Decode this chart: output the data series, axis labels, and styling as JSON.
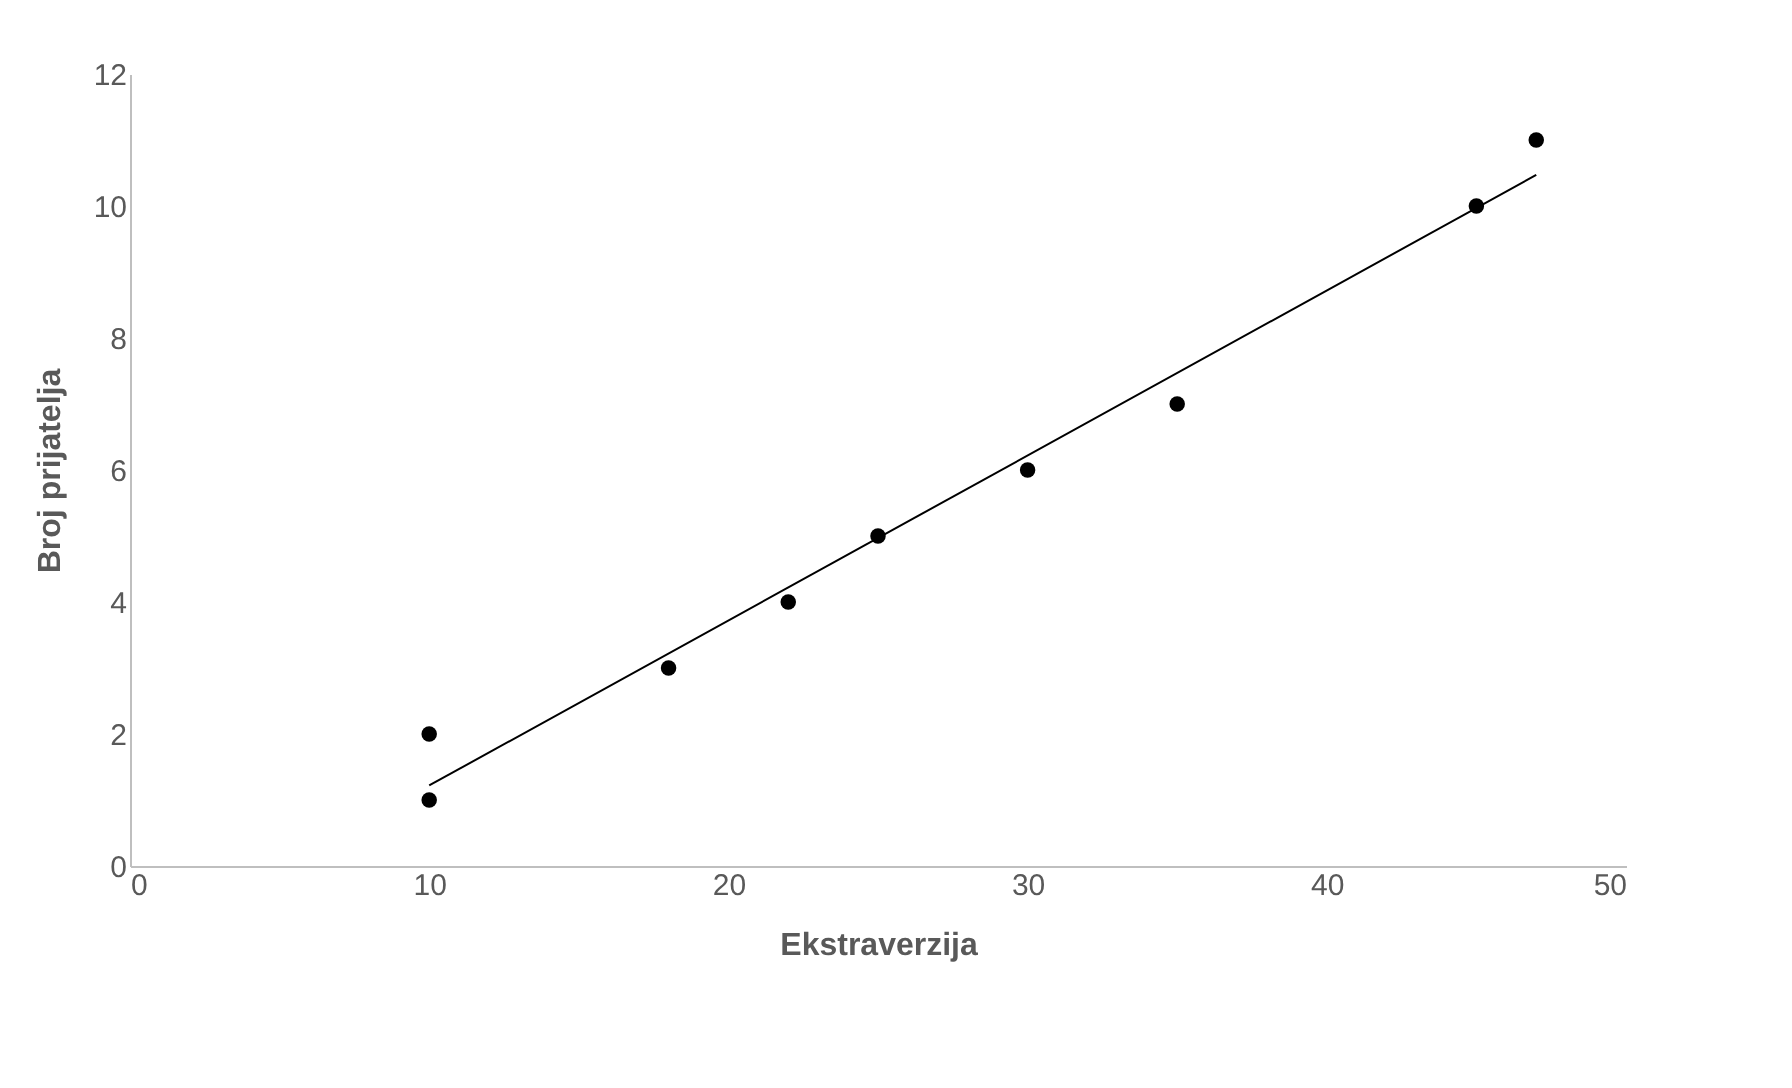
{
  "chart_data": {
    "type": "scatter",
    "xlabel": "Ekstraverzija",
    "ylabel": "Broj prijatelja",
    "grid": false,
    "xlim": [
      0,
      50
    ],
    "xticks": [
      0,
      10,
      20,
      30,
      40,
      50
    ],
    "ylim": [
      0,
      12
    ],
    "yticks": [
      0,
      2,
      4,
      6,
      8,
      10,
      12
    ],
    "series": [
      {
        "marker": "circle",
        "color": "#000000",
        "x": [
          10,
          10,
          18,
          22,
          25,
          30,
          35,
          45,
          47
        ],
        "values": [
          1,
          2,
          3,
          4,
          5,
          6,
          7,
          10,
          11
        ]
      },
      {
        "type": "line",
        "color": "#000000",
        "x": [
          10,
          47
        ],
        "values": [
          1.22,
          10.47
        ]
      }
    ]
  }
}
